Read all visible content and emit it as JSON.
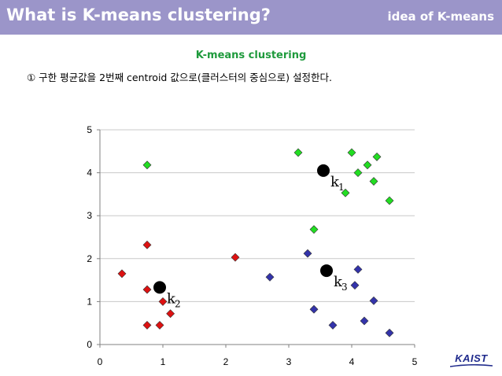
{
  "header": {
    "title": "What is K-means clustering?",
    "subtitle": "idea of K-means"
  },
  "section_title": "K-means clustering",
  "step_text": "① 구한 평균값을 2번째 centroid 값으로(클러스터의 중심으로) 설정한다.",
  "logo_text": "KAIST",
  "colors": {
    "header_bg": "#9b95c9",
    "title_green": "#1e9a3c",
    "cluster_green": "#22dd22",
    "cluster_red": "#dd1111",
    "cluster_blue": "#3333aa",
    "centroid": "#000000",
    "logo_blue": "#1f2a8c"
  },
  "chart_data": {
    "type": "scatter",
    "xlim": [
      0,
      5
    ],
    "ylim": [
      0,
      5
    ],
    "xticks": [
      "0",
      "1",
      "2",
      "3",
      "4",
      "5"
    ],
    "yticks": [
      "0",
      "1",
      "2",
      "3",
      "4",
      "5"
    ],
    "grid": "horizontal",
    "series": [
      {
        "color": "#22dd22",
        "marker": "diamond",
        "points": [
          [
            0.75,
            4.18
          ],
          [
            3.15,
            4.47
          ],
          [
            4.0,
            4.47
          ],
          [
            4.4,
            4.37
          ],
          [
            4.25,
            4.18
          ],
          [
            4.1,
            4.0
          ],
          [
            4.35,
            3.8
          ],
          [
            3.9,
            3.53
          ],
          [
            4.6,
            3.35
          ],
          [
            3.4,
            2.68
          ]
        ]
      },
      {
        "color": "#dd1111",
        "marker": "diamond",
        "points": [
          [
            0.75,
            2.32
          ],
          [
            0.35,
            1.65
          ],
          [
            0.75,
            1.28
          ],
          [
            1.0,
            1.0
          ],
          [
            1.12,
            0.72
          ],
          [
            0.75,
            0.45
          ],
          [
            0.95,
            0.45
          ],
          [
            2.15,
            2.03
          ]
        ]
      },
      {
        "color": "#3333aa",
        "marker": "diamond",
        "points": [
          [
            3.3,
            2.12
          ],
          [
            2.7,
            1.57
          ],
          [
            4.1,
            1.75
          ],
          [
            4.05,
            1.38
          ],
          [
            4.35,
            1.02
          ],
          [
            3.4,
            0.82
          ],
          [
            3.7,
            0.45
          ],
          [
            4.2,
            0.55
          ],
          [
            4.6,
            0.27
          ]
        ]
      }
    ],
    "centroids": [
      {
        "label": "k",
        "sub": "1",
        "x": 3.55,
        "y": 4.05
      },
      {
        "label": "k",
        "sub": "2",
        "x": 0.95,
        "y": 1.33
      },
      {
        "label": "k",
        "sub": "3",
        "x": 3.6,
        "y": 1.72
      }
    ]
  }
}
